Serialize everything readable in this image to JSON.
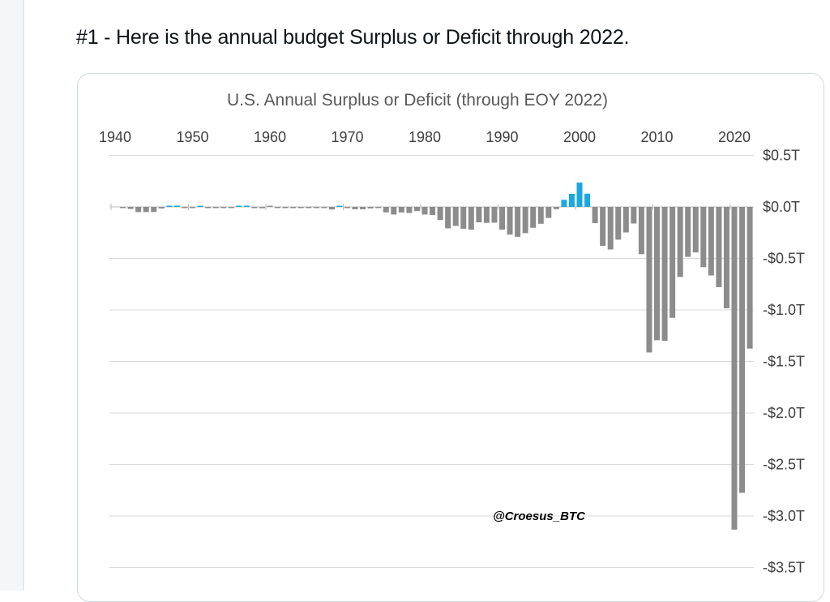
{
  "tweet": {
    "text": "#1 - Here is the annual budget Surplus or Deficit through 2022."
  },
  "watermark": "@Croesus_BTC",
  "colors": {
    "surplus": "#1aa8e0",
    "deficit": "#8c8c8c",
    "grid": "#d9d9d9",
    "axis": "#bfbfbf"
  },
  "chart_data": {
    "type": "bar",
    "title": "U.S. Annual Surplus or Deficit (through EOY 2022)",
    "xlabel": "",
    "ylabel": "",
    "x_axis_position": "top",
    "y_axis_position": "right",
    "xlim": [
      1937,
      2023
    ],
    "ylim": [
      -3.5,
      0.5
    ],
    "grid": true,
    "x_ticks": [
      1940,
      1950,
      1960,
      1970,
      1980,
      1990,
      2000,
      2010,
      2020
    ],
    "x_tick_labels": [
      "1940",
      "1950",
      "1960",
      "1970",
      "1980",
      "1990",
      "2000",
      "2010",
      "2020"
    ],
    "y_ticks": [
      0.5,
      0.0,
      -0.5,
      -1.0,
      -1.5,
      -2.0,
      -2.5,
      -3.0,
      -3.5
    ],
    "y_tick_labels": [
      "$0.5T",
      "$0.0T",
      "-$0.5T",
      "-$1.0T",
      "-$1.5T",
      "-$2.0T",
      "-$2.5T",
      "-$3.0T",
      "-$3.5T"
    ],
    "units": "trillions of USD",
    "years": [
      1941,
      1942,
      1943,
      1944,
      1945,
      1946,
      1947,
      1948,
      1949,
      1950,
      1951,
      1952,
      1953,
      1954,
      1955,
      1956,
      1957,
      1958,
      1959,
      1960,
      1961,
      1962,
      1963,
      1964,
      1965,
      1966,
      1967,
      1968,
      1969,
      1970,
      1971,
      1972,
      1973,
      1974,
      1975,
      1976,
      1977,
      1978,
      1979,
      1980,
      1981,
      1982,
      1983,
      1984,
      1985,
      1986,
      1987,
      1988,
      1989,
      1990,
      1991,
      1992,
      1993,
      1994,
      1995,
      1996,
      1997,
      1998,
      1999,
      2000,
      2001,
      2002,
      2003,
      2004,
      2005,
      2006,
      2007,
      2008,
      2009,
      2010,
      2011,
      2012,
      2013,
      2014,
      2015,
      2016,
      2017,
      2018,
      2019,
      2020,
      2021,
      2022
    ],
    "values": [
      -0.005,
      -0.02,
      -0.05,
      -0.05,
      -0.05,
      -0.015,
      0.004,
      0.012,
      -0.001,
      -0.003,
      0.006,
      -0.002,
      -0.006,
      -0.001,
      -0.003,
      0.004,
      0.003,
      -0.003,
      -0.013,
      0.0,
      -0.003,
      -0.007,
      -0.005,
      -0.006,
      -0.001,
      -0.004,
      -0.009,
      -0.025,
      0.003,
      -0.003,
      -0.023,
      -0.023,
      -0.015,
      -0.006,
      -0.053,
      -0.074,
      -0.054,
      -0.059,
      -0.041,
      -0.074,
      -0.079,
      -0.128,
      -0.208,
      -0.185,
      -0.212,
      -0.221,
      -0.15,
      -0.155,
      -0.153,
      -0.221,
      -0.269,
      -0.29,
      -0.255,
      -0.203,
      -0.164,
      -0.107,
      -0.022,
      0.069,
      0.126,
      0.236,
      0.128,
      -0.158,
      -0.378,
      -0.413,
      -0.318,
      -0.248,
      -0.161,
      -0.459,
      -1.413,
      -1.294,
      -1.3,
      -1.077,
      -0.68,
      -0.485,
      -0.442,
      -0.585,
      -0.665,
      -0.779,
      -0.984,
      -3.132,
      -2.775,
      -1.375
    ]
  }
}
